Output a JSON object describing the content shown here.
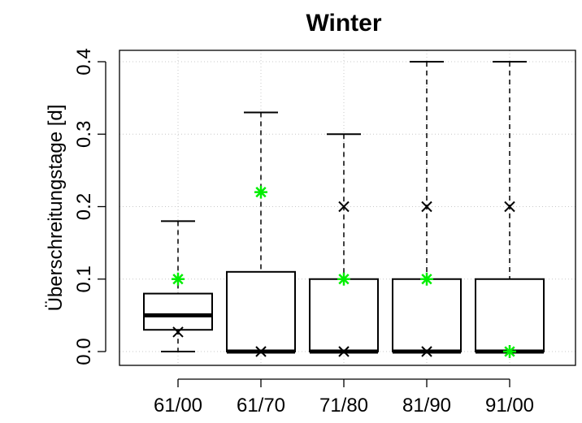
{
  "chart_data": {
    "type": "boxplot",
    "title": "Winter",
    "xlabel": "",
    "ylabel": "Überschreitungstage [d]",
    "ylim": [
      0.0,
      0.4
    ],
    "yticks": [
      "0.0",
      "0.1",
      "0.2",
      "0.3",
      "0.4"
    ],
    "grid": true,
    "categories": [
      "61/00",
      "61/70",
      "71/80",
      "81/90",
      "91/00"
    ],
    "boxes": [
      {
        "label": "61/00",
        "whisker_low": 0.0,
        "q1": 0.03,
        "median": 0.05,
        "q3": 0.08,
        "whisker_high": 0.18
      },
      {
        "label": "61/70",
        "whisker_low": 0.0,
        "q1": 0.0,
        "median": 0.0,
        "q3": 0.11,
        "whisker_high": 0.33
      },
      {
        "label": "71/80",
        "whisker_low": 0.0,
        "q1": 0.0,
        "median": 0.0,
        "q3": 0.1,
        "whisker_high": 0.3
      },
      {
        "label": "81/90",
        "whisker_low": 0.0,
        "q1": 0.0,
        "median": 0.0,
        "q3": 0.1,
        "whisker_high": 0.4
      },
      {
        "label": "91/00",
        "whisker_low": 0.0,
        "q1": 0.0,
        "median": 0.0,
        "q3": 0.1,
        "whisker_high": 0.4
      }
    ],
    "series": [
      {
        "marker": "x",
        "color": "#000000",
        "values": [
          0.027,
          0.0,
          0.0,
          0.0,
          0.2
        ]
      },
      {
        "marker": "x-upper",
        "color": "#000000",
        "values": [
          null,
          null,
          0.2,
          0.2,
          null
        ]
      },
      {
        "marker": "asterisk",
        "color": "#00ee00",
        "values": [
          0.1,
          0.22,
          0.1,
          0.1,
          0.0
        ]
      }
    ]
  }
}
